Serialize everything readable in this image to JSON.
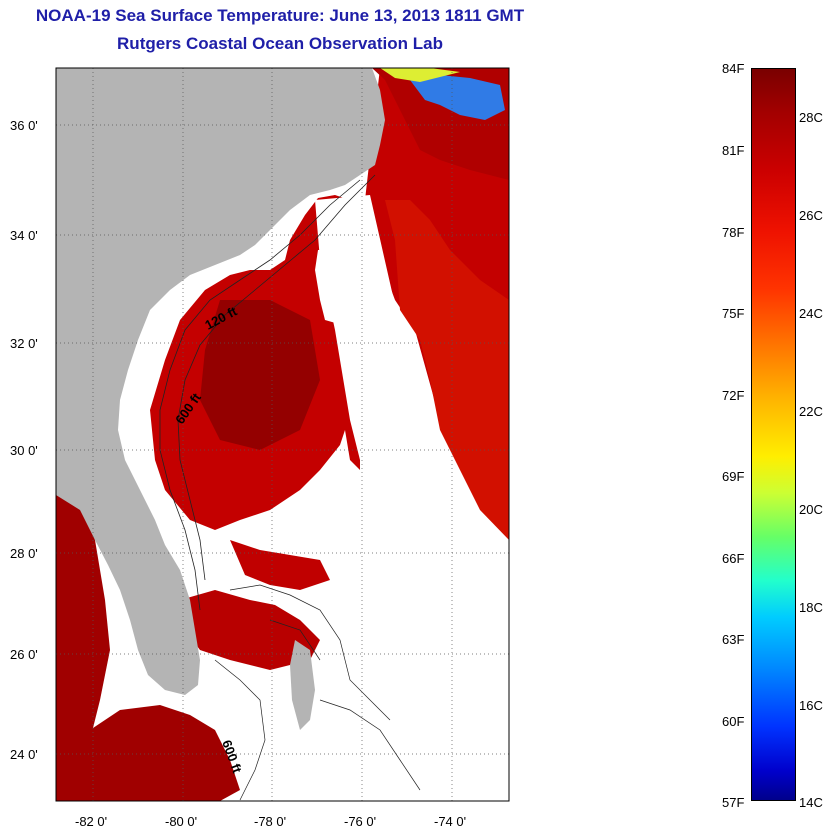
{
  "header": {
    "title": "NOAA-19 Sea Surface Temperature:  June 13, 2013 1811 GMT",
    "subtitle": "Rutgers Coastal Ocean Observation Lab"
  },
  "map": {
    "lat_labels": [
      "36 0'",
      "34 0'",
      "32 0'",
      "30 0'",
      "28 0'",
      "26 0'",
      "24 0'"
    ],
    "lon_labels": [
      "-82 0'",
      "-80 0'",
      "-78 0'",
      "-76 0'",
      "-74 0'"
    ],
    "contour_labels": [
      "120 ft",
      "600 ft",
      "600 ft"
    ],
    "colors": {
      "land": "#b4b4b4",
      "sst_warm": "#c00000",
      "sst_hot": "#8c0000",
      "cloud": "#ffffff"
    }
  },
  "colorbar": {
    "fahrenheit": [
      "84F",
      "81F",
      "78F",
      "75F",
      "72F",
      "69F",
      "66F",
      "63F",
      "60F",
      "57F"
    ],
    "celsius": [
      "28C",
      "26C",
      "24C",
      "22C",
      "20C",
      "18C",
      "16C",
      "14C"
    ]
  }
}
